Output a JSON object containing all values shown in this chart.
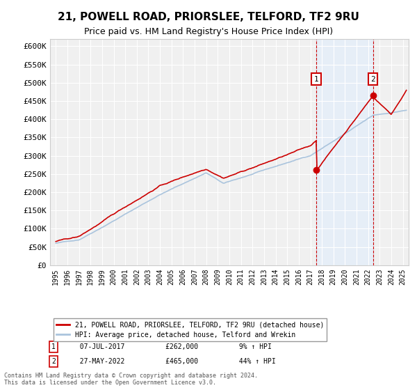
{
  "title": "21, POWELL ROAD, PRIORSLEE, TELFORD, TF2 9RU",
  "subtitle": "Price paid vs. HM Land Registry's House Price Index (HPI)",
  "title_fontsize": 11,
  "subtitle_fontsize": 9,
  "background_color": "#ffffff",
  "plot_bg_color": "#f0f0f0",
  "grid_color": "#ffffff",
  "ylabel_ticks": [
    "£0",
    "£50K",
    "£100K",
    "£150K",
    "£200K",
    "£250K",
    "£300K",
    "£350K",
    "£400K",
    "£450K",
    "£500K",
    "£550K",
    "£600K"
  ],
  "ytick_values": [
    0,
    50000,
    100000,
    150000,
    200000,
    250000,
    300000,
    350000,
    400000,
    450000,
    500000,
    550000,
    600000
  ],
  "ylim": [
    0,
    620000
  ],
  "xlim_start": 1995.0,
  "xlim_end": 2025.5,
  "hpi_color": "#aac4dd",
  "price_color": "#cc0000",
  "marker_color": "#cc0000",
  "vline_color": "#cc0000",
  "annotation_box_color": "#cc0000",
  "sale1_x": 2017.52,
  "sale1_y": 262000,
  "sale2_x": 2022.41,
  "sale2_y": 465000,
  "sale1_label": "1",
  "sale2_label": "2",
  "legend_label1": "21, POWELL ROAD, PRIORSLEE, TELFORD, TF2 9RU (detached house)",
  "legend_label2": "HPI: Average price, detached house, Telford and Wrekin",
  "annotation1_num": "1",
  "annotation1_date": "07-JUL-2017",
  "annotation1_price": "£262,000",
  "annotation1_hpi": "9% ↑ HPI",
  "annotation2_num": "2",
  "annotation2_date": "27-MAY-2022",
  "annotation2_price": "£465,000",
  "annotation2_hpi": "44% ↑ HPI",
  "footer": "Contains HM Land Registry data © Crown copyright and database right 2024.\nThis data is licensed under the Open Government Licence v3.0.",
  "highlight_color": "#ddeeff"
}
